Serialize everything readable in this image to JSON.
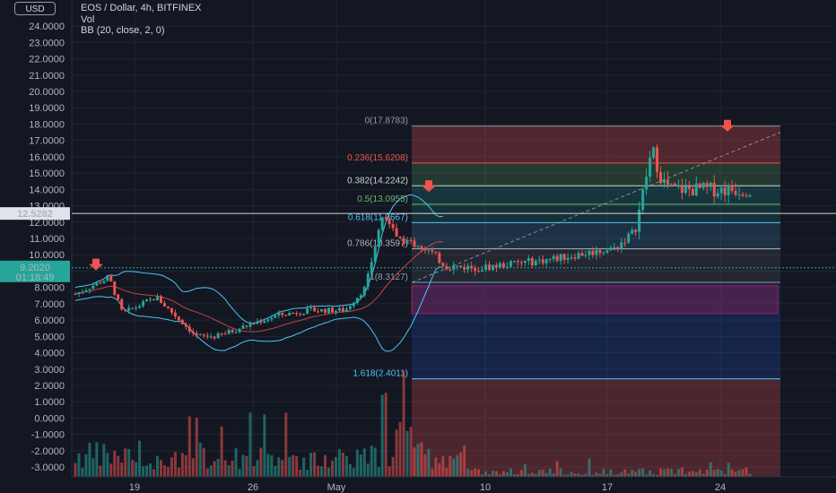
{
  "legend": {
    "symbol": "EOS / Dollar, 4h, BITFINEX",
    "volume": "Vol",
    "indicator": "BB (20, close, 2, 0)"
  },
  "currency_badge": "USD",
  "price_labels": {
    "last_price": "12.5282",
    "current_price": "9.2020",
    "countdown": "01:18:49"
  },
  "colors": {
    "background": "#131722",
    "up": "#26a69a",
    "down": "#ef5350",
    "bb": "#4fc3f7"
  },
  "chart_data": {
    "type": "candlestick",
    "y_ticks": [
      "24.0000",
      "23.0000",
      "22.0000",
      "21.0000",
      "20.0000",
      "19.0000",
      "18.0000",
      "17.0000",
      "16.0000",
      "15.0000",
      "14.0000",
      "13.0000",
      "12.0000",
      "11.0000",
      "10.0000",
      "9.0000",
      "8.0000",
      "7.0000",
      "6.0000",
      "5.0000",
      "4.0000",
      "3.0000",
      "2.0000",
      "1.0000",
      "0.0000",
      "-1.0000",
      "-2.0000",
      "-3.0000"
    ],
    "x_ticks": [
      "19",
      "26",
      "May",
      "10",
      "17",
      "24"
    ],
    "ylim": [
      -3.6,
      25.6
    ],
    "fib_levels": [
      {
        "label": "0(17.8783)",
        "value": 17.8783,
        "color": "#9598a1"
      },
      {
        "label": "0.236(15.6208)",
        "value": 15.6208,
        "color": "#ef5350"
      },
      {
        "label": "0.382(14.2242)",
        "value": 14.2242,
        "color": "#c8d6d2"
      },
      {
        "label": "0.5(13.0955)",
        "value": 13.0955,
        "color": "#66bb6a"
      },
      {
        "label": "0.618(11.9667)",
        "value": 11.9667,
        "color": "#4fc3f7"
      },
      {
        "label": "0.786(10.3597)",
        "value": 10.3597,
        "color": "#b2b5be"
      },
      {
        "label": "1(8.3127)",
        "value": 8.3127,
        "color": "#9598a1"
      },
      {
        "label": "1.618(2.4011)",
        "value": 2.4011,
        "color": "#4fc3f7"
      }
    ],
    "arrows": [
      "top-1",
      "top-2",
      "top-3"
    ],
    "price_path": [
      [
        0,
        7.6
      ],
      [
        0.05,
        8.6
      ],
      [
        0.07,
        6.4
      ],
      [
        0.12,
        7.4
      ],
      [
        0.15,
        6.2
      ],
      [
        0.18,
        5.0
      ],
      [
        0.21,
        5.0
      ],
      [
        0.25,
        5.6
      ],
      [
        0.3,
        6.3
      ],
      [
        0.35,
        6.6
      ],
      [
        0.4,
        6.6
      ],
      [
        0.43,
        8.0
      ],
      [
        0.455,
        12.4
      ],
      [
        0.48,
        11.0
      ],
      [
        0.52,
        10.4
      ],
      [
        0.55,
        9.3
      ],
      [
        0.6,
        9.2
      ],
      [
        0.7,
        9.7
      ],
      [
        0.8,
        10.4
      ],
      [
        0.83,
        11.5
      ],
      [
        0.855,
        16.5
      ],
      [
        0.87,
        14.5
      ],
      [
        0.885,
        14.0
      ]
    ]
  }
}
